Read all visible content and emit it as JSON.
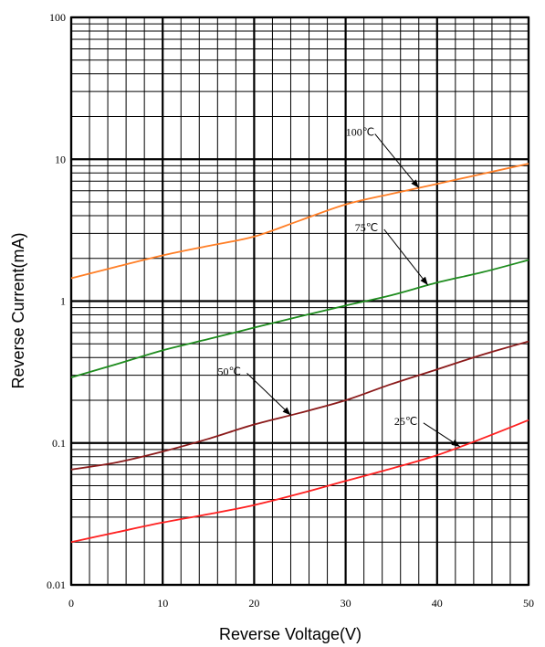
{
  "chart_data": {
    "type": "line",
    "title": "",
    "xlabel": "Reverse Voltage(V)",
    "ylabel": "Reverse Current(mA)",
    "xlim": [
      0,
      50
    ],
    "ylim": [
      0.01,
      100
    ],
    "yscale": "log",
    "grid": true,
    "x_ticks": [
      "0",
      "10",
      "20",
      "30",
      "40",
      "50"
    ],
    "y_ticks": [
      "0.01",
      "0.1",
      "1",
      "10",
      "100"
    ],
    "series": [
      {
        "name": "100℃",
        "color": "#ff7f27",
        "x": [
          0,
          5,
          10,
          15,
          20,
          25,
          30,
          35,
          40,
          45,
          50
        ],
        "y": [
          1.45,
          1.75,
          2.1,
          2.45,
          2.85,
          3.7,
          4.8,
          5.7,
          6.7,
          7.9,
          9.3
        ]
      },
      {
        "name": "75℃",
        "color": "#1e8c1e",
        "x": [
          0,
          5,
          10,
          15,
          20,
          25,
          30,
          35,
          40,
          45,
          50
        ],
        "y": [
          0.29,
          0.36,
          0.45,
          0.54,
          0.65,
          0.78,
          0.93,
          1.1,
          1.35,
          1.6,
          1.95
        ]
      },
      {
        "name": "50℃",
        "color": "#8b1a1a",
        "x": [
          0,
          5,
          10,
          15,
          20,
          25,
          30,
          35,
          40,
          45,
          50
        ],
        "y": [
          0.065,
          0.073,
          0.087,
          0.107,
          0.135,
          0.163,
          0.2,
          0.26,
          0.33,
          0.42,
          0.52
        ]
      },
      {
        "name": "25℃",
        "color": "#ff2020",
        "x": [
          0,
          5,
          10,
          15,
          20,
          25,
          30,
          35,
          40,
          45,
          50
        ],
        "y": [
          0.02,
          0.0235,
          0.0275,
          0.0315,
          0.0365,
          0.044,
          0.054,
          0.066,
          0.082,
          0.108,
          0.145
        ]
      }
    ],
    "annotations": [
      {
        "text": "100℃",
        "series": 0,
        "x": 38
      },
      {
        "text": "75℃",
        "series": 1,
        "x": 39
      },
      {
        "text": "50℃",
        "series": 2,
        "x": 24
      },
      {
        "text": "25℃",
        "series": 3,
        "x": 42.5
      }
    ]
  }
}
